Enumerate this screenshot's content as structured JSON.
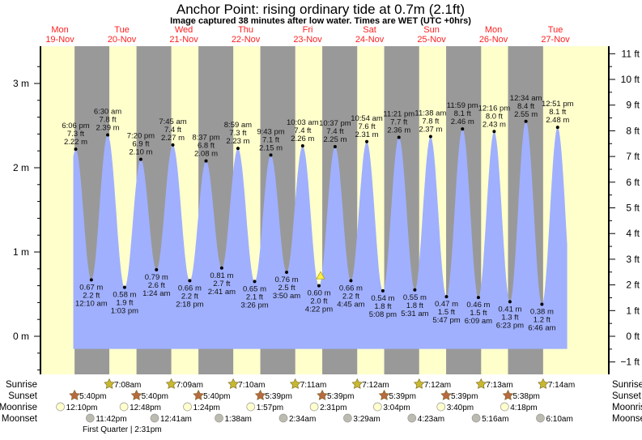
{
  "chart_data": {
    "type": "area",
    "title": "Anchor Point: rising  ordinary tide at 0.7m (2.1ft)",
    "subtitle": "Image captured 38 minutes after low water. Times are WET (UTC +0hrs)",
    "days": [
      {
        "day": "Mon",
        "date": "19-Nov"
      },
      {
        "day": "Tue",
        "date": "20-Nov"
      },
      {
        "day": "Wed",
        "date": "21-Nov"
      },
      {
        "day": "Thu",
        "date": "22-Nov"
      },
      {
        "day": "Fri",
        "date": "23-Nov"
      },
      {
        "day": "Sat",
        "date": "24-Nov"
      },
      {
        "day": "Sun",
        "date": "25-Nov"
      },
      {
        "day": "Mon",
        "date": "26-Nov"
      },
      {
        "day": "Tue",
        "date": "27-Nov"
      }
    ],
    "y_left": {
      "unit": "m",
      "ticks": [
        "0 m",
        "1 m",
        "2 m",
        "3 m"
      ],
      "values": [
        0,
        1,
        2,
        3
      ]
    },
    "y_right": {
      "unit": "ft",
      "ticks": [
        "−1 ft",
        "0 ft",
        "1 ft",
        "2 ft",
        "3 ft",
        "4 ft",
        "5 ft",
        "6 ft",
        "7 ft",
        "8 ft",
        "9 ft",
        "10 ft",
        "11 ft"
      ],
      "values": [
        -1,
        0,
        1,
        2,
        3,
        4,
        5,
        6,
        7,
        8,
        9,
        10,
        11
      ]
    },
    "ylim_m": [
      -0.45,
      3.4
    ],
    "current": {
      "day_index": 4,
      "time": "5:00 pm",
      "height_m": 0.7
    },
    "extremes": [
      {
        "d": 0,
        "time": "6:06 pm",
        "type": "high",
        "m": "2.22 m",
        "ft": "7.3 ft",
        "v": 2.22
      },
      {
        "d": 1,
        "time": "12:10 am",
        "type": "low",
        "m": "0.67 m",
        "ft": "2.2 ft",
        "v": 0.67
      },
      {
        "d": 1,
        "time": "6:30 am",
        "type": "high",
        "m": "2.39 m",
        "ft": "7.8 ft",
        "v": 2.39
      },
      {
        "d": 1,
        "time": "1:03 pm",
        "type": "low",
        "m": "0.58 m",
        "ft": "1.9 ft",
        "v": 0.58
      },
      {
        "d": 1,
        "time": "7:20 pm",
        "type": "high",
        "m": "2.10 m",
        "ft": "6.9 ft",
        "v": 2.1
      },
      {
        "d": 2,
        "time": "1:24 am",
        "type": "low",
        "m": "0.79 m",
        "ft": "2.6 ft",
        "v": 0.79
      },
      {
        "d": 2,
        "time": "7:45 am",
        "type": "high",
        "m": "2.27 m",
        "ft": "7.4 ft",
        "v": 2.27
      },
      {
        "d": 2,
        "time": "2:18 pm",
        "type": "low",
        "m": "0.66 m",
        "ft": "2.2 ft",
        "v": 0.66
      },
      {
        "d": 2,
        "time": "8:37 pm",
        "type": "high",
        "m": "2.08 m",
        "ft": "6.8 ft",
        "v": 2.08
      },
      {
        "d": 3,
        "time": "2:41 am",
        "type": "low",
        "m": "0.81 m",
        "ft": "2.7 ft",
        "v": 0.81
      },
      {
        "d": 3,
        "time": "8:59 am",
        "type": "high",
        "m": "2.23 m",
        "ft": "7.3 ft",
        "v": 2.23
      },
      {
        "d": 3,
        "time": "3:26 pm",
        "type": "low",
        "m": "0.65 m",
        "ft": "2.1 ft",
        "v": 0.65
      },
      {
        "d": 3,
        "time": "9:43 pm",
        "type": "high",
        "m": "2.15 m",
        "ft": "7.1 ft",
        "v": 2.15
      },
      {
        "d": 4,
        "time": "3:50 am",
        "type": "low",
        "m": "0.76 m",
        "ft": "2.5 ft",
        "v": 0.76
      },
      {
        "d": 4,
        "time": "10:03 am",
        "type": "high",
        "m": "2.26 m",
        "ft": "7.4 ft",
        "v": 2.26
      },
      {
        "d": 4,
        "time": "4:22 pm",
        "type": "low",
        "m": "0.60 m",
        "ft": "2.0 ft",
        "v": 0.6
      },
      {
        "d": 4,
        "time": "10:37 pm",
        "type": "high",
        "m": "2.25 m",
        "ft": "7.4 ft",
        "v": 2.25
      },
      {
        "d": 5,
        "time": "4:45 am",
        "type": "low",
        "m": "0.66 m",
        "ft": "2.2 ft",
        "v": 0.66
      },
      {
        "d": 5,
        "time": "10:54 am",
        "type": "high",
        "m": "2.31 m",
        "ft": "7.6 ft",
        "v": 2.31
      },
      {
        "d": 5,
        "time": "5:08 pm",
        "type": "low",
        "m": "0.54 m",
        "ft": "1.8 ft",
        "v": 0.54
      },
      {
        "d": 5,
        "time": "11:21 pm",
        "type": "high",
        "m": "2.36 m",
        "ft": "7.7 ft",
        "v": 2.36
      },
      {
        "d": 6,
        "time": "5:31 am",
        "type": "low",
        "m": "0.55 m",
        "ft": "1.8 ft",
        "v": 0.55
      },
      {
        "d": 6,
        "time": "11:38 am",
        "type": "high",
        "m": "2.37 m",
        "ft": "7.8 ft",
        "v": 2.37
      },
      {
        "d": 6,
        "time": "5:47 pm",
        "type": "low",
        "m": "0.47 m",
        "ft": "1.5 ft",
        "v": 0.47
      },
      {
        "d": 6,
        "time": "11:59 pm",
        "type": "high",
        "m": "2.46 m",
        "ft": "8.1 ft",
        "v": 2.46
      },
      {
        "d": 7,
        "time": "6:09 am",
        "type": "low",
        "m": "0.46 m",
        "ft": "1.5 ft",
        "v": 0.46
      },
      {
        "d": 7,
        "time": "12:16 pm",
        "type": "high",
        "m": "2.43 m",
        "ft": "8.0 ft",
        "v": 2.43
      },
      {
        "d": 7,
        "time": "6:23 pm",
        "type": "low",
        "m": "0.41 m",
        "ft": "1.3 ft",
        "v": 0.41
      },
      {
        "d": 8,
        "time": "12:34 am",
        "type": "high",
        "m": "2.55 m",
        "ft": "8.4 ft",
        "v": 2.55
      },
      {
        "d": 8,
        "time": "6:46 am",
        "type": "low",
        "m": "0.38 m",
        "ft": "1.2 ft",
        "v": 0.38
      },
      {
        "d": 8,
        "time": "12:51 pm",
        "type": "high",
        "m": "2.48 m",
        "ft": "8.1 ft",
        "v": 2.48
      }
    ],
    "rows": {
      "labels": {
        "sunrise": "Sunrise",
        "sunset": "Sunset",
        "moonrise": "Moonrise",
        "moonset": "Moonset"
      },
      "sunrise": [
        {
          "d": 1,
          "t": "7:08am"
        },
        {
          "d": 2,
          "t": "7:09am"
        },
        {
          "d": 3,
          "t": "7:10am"
        },
        {
          "d": 4,
          "t": "7:11am"
        },
        {
          "d": 5,
          "t": "7:12am"
        },
        {
          "d": 6,
          "t": "7:12am"
        },
        {
          "d": 7,
          "t": "7:13am"
        },
        {
          "d": 8,
          "t": "7:14am"
        }
      ],
      "sunset": [
        {
          "d": 0,
          "t": "5:40pm"
        },
        {
          "d": 1,
          "t": "5:40pm"
        },
        {
          "d": 2,
          "t": "5:40pm"
        },
        {
          "d": 3,
          "t": "5:39pm"
        },
        {
          "d": 4,
          "t": "5:39pm"
        },
        {
          "d": 5,
          "t": "5:39pm"
        },
        {
          "d": 6,
          "t": "5:39pm"
        },
        {
          "d": 7,
          "t": "5:38pm"
        }
      ],
      "moonrise": [
        {
          "d": 0,
          "t": "12:10pm"
        },
        {
          "d": 1,
          "t": "12:48pm"
        },
        {
          "d": 2,
          "t": "1:24pm"
        },
        {
          "d": 3,
          "t": "1:57pm"
        },
        {
          "d": 4,
          "t": "2:31pm"
        },
        {
          "d": 5,
          "t": "3:04pm"
        },
        {
          "d": 6,
          "t": "3:40pm"
        },
        {
          "d": 7,
          "t": "4:18pm"
        }
      ],
      "moonset": [
        {
          "d": 0,
          "t": "11:42pm"
        },
        {
          "d": 2,
          "t": "12:41am"
        },
        {
          "d": 3,
          "t": "1:38am"
        },
        {
          "d": 4,
          "t": "2:34am"
        },
        {
          "d": 5,
          "t": "3:29am"
        },
        {
          "d": 6,
          "t": "4:23am"
        },
        {
          "d": 7,
          "t": "5:16am"
        },
        {
          "d": 8,
          "t": "6:10am"
        }
      ],
      "moon_phase": "First Quarter | 2:31pm"
    },
    "colors": {
      "day": "#ffffcc",
      "night": "#999999",
      "water": "#a0b0ff",
      "day_label": "#ff2020",
      "sunrise": "#c8b830",
      "sunset": "#b86a40",
      "moonrise": "#ffffcc",
      "moonset": "#bbbbb0"
    }
  }
}
